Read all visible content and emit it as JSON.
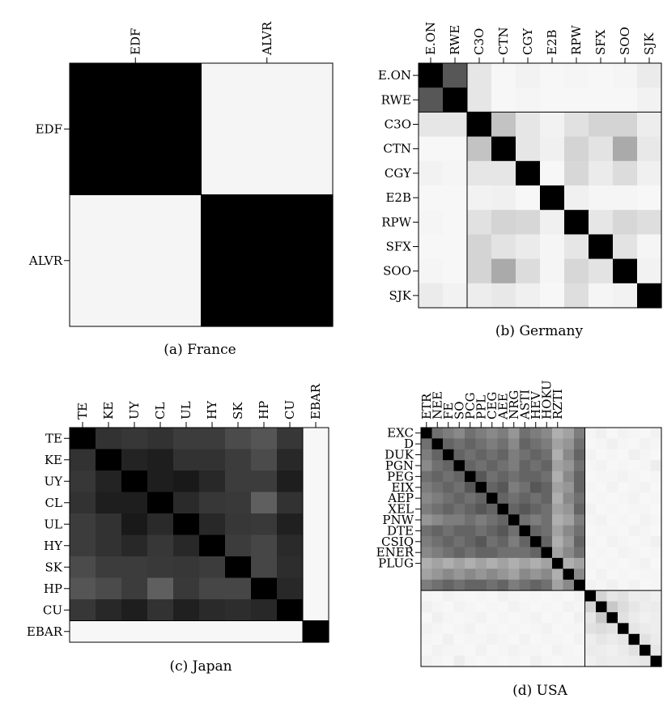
{
  "figure": {
    "captions": [
      "(a)  France",
      "(b)  Germany",
      "(c)  Japan",
      "(d)  USA"
    ]
  },
  "chart_data": [
    {
      "type": "heatmap",
      "caption": "(a)  France",
      "row_labels": [
        "EDF",
        "ALVR"
      ],
      "col_labels": [
        "EDF",
        "ALVR"
      ],
      "grid": false,
      "group_sizes": [
        1,
        1
      ],
      "colormap": "gray_r",
      "values": [
        [
          1.0,
          0.02
        ],
        [
          0.02,
          1.0
        ]
      ]
    },
    {
      "type": "heatmap",
      "caption": "(b)  Germany",
      "row_labels": [
        "E.ON",
        "RWE",
        "C3O",
        "CTN",
        "CGY",
        "E2B",
        "RPW",
        "SFX",
        "SOO",
        "SJK"
      ],
      "col_labels": [
        "E.ON",
        "RWE",
        "C3O",
        "CTN",
        "CGY",
        "E2B",
        "RPW",
        "SFX",
        "SOO",
        "SJK"
      ],
      "grid": false,
      "group_sizes": [
        2,
        8
      ],
      "colormap": "gray_r",
      "values": [
        [
          1.0,
          0.65,
          0.08,
          0.01,
          0.03,
          0.01,
          0.02,
          0.01,
          0.02,
          0.06
        ],
        [
          0.65,
          1.0,
          0.08,
          0.01,
          0.02,
          0.01,
          0.01,
          0.01,
          0.01,
          0.03
        ],
        [
          0.08,
          0.08,
          1.0,
          0.22,
          0.08,
          0.03,
          0.1,
          0.15,
          0.15,
          0.05
        ],
        [
          0.01,
          0.01,
          0.22,
          1.0,
          0.08,
          0.04,
          0.15,
          0.09,
          0.32,
          0.07
        ],
        [
          0.03,
          0.02,
          0.08,
          0.08,
          1.0,
          0.01,
          0.14,
          0.06,
          0.12,
          0.04
        ],
        [
          0.01,
          0.01,
          0.03,
          0.04,
          0.01,
          1.0,
          0.04,
          0.02,
          0.02,
          0.01
        ],
        [
          0.02,
          0.01,
          0.1,
          0.15,
          0.14,
          0.04,
          1.0,
          0.08,
          0.14,
          0.11
        ],
        [
          0.01,
          0.01,
          0.15,
          0.09,
          0.06,
          0.02,
          0.08,
          1.0,
          0.09,
          0.02
        ],
        [
          0.02,
          0.01,
          0.15,
          0.32,
          0.12,
          0.02,
          0.14,
          0.09,
          1.0,
          0.03
        ],
        [
          0.06,
          0.03,
          0.05,
          0.07,
          0.04,
          0.01,
          0.11,
          0.02,
          0.03,
          1.0
        ]
      ]
    },
    {
      "type": "heatmap",
      "caption": "(c)  Japan",
      "row_labels": [
        "TE",
        "KE",
        "UY",
        "CL",
        "UL",
        "HY",
        "SK",
        "HP",
        "CU",
        "EBAR"
      ],
      "col_labels": [
        "TE",
        "KE",
        "UY",
        "CL",
        "UL",
        "HY",
        "SK",
        "HP",
        "CU",
        "EBAR"
      ],
      "grid": false,
      "group_sizes": [
        9,
        1
      ],
      "colormap": "gray_r",
      "values": [
        [
          1.0,
          0.8,
          0.78,
          0.8,
          0.76,
          0.76,
          0.7,
          0.66,
          0.78,
          0.01
        ],
        [
          0.8,
          1.0,
          0.86,
          0.88,
          0.8,
          0.8,
          0.76,
          0.7,
          0.84,
          0.01
        ],
        [
          0.78,
          0.86,
          1.0,
          0.88,
          0.9,
          0.84,
          0.76,
          0.76,
          0.88,
          0.01
        ],
        [
          0.8,
          0.88,
          0.88,
          1.0,
          0.83,
          0.78,
          0.77,
          0.62,
          0.8,
          0.01
        ],
        [
          0.76,
          0.8,
          0.9,
          0.83,
          1.0,
          0.84,
          0.78,
          0.77,
          0.87,
          0.01
        ],
        [
          0.76,
          0.8,
          0.84,
          0.78,
          0.84,
          1.0,
          0.76,
          0.72,
          0.83,
          0.01
        ],
        [
          0.7,
          0.76,
          0.76,
          0.77,
          0.78,
          0.76,
          1.0,
          0.72,
          0.82,
          0.01
        ],
        [
          0.66,
          0.7,
          0.76,
          0.62,
          0.77,
          0.72,
          0.72,
          1.0,
          0.84,
          0.01
        ],
        [
          0.78,
          0.84,
          0.88,
          0.8,
          0.87,
          0.83,
          0.82,
          0.84,
          1.0,
          0.01
        ],
        [
          0.01,
          0.01,
          0.01,
          0.01,
          0.01,
          0.01,
          0.01,
          0.01,
          0.01,
          1.0
        ]
      ]
    },
    {
      "type": "heatmap",
      "caption": "(d)  USA",
      "row_labels": [
        "EXC",
        "D",
        "DUK",
        "PGN",
        "PEG",
        "EIX",
        "AEP",
        "XEL",
        "PNW",
        "DTE",
        "CSIQ",
        "ENER",
        "PLUG"
      ],
      "col_labels": [
        "ETR",
        "NEE",
        "FE",
        "SO",
        "PCG",
        "PPL",
        "CEG",
        "AEE",
        "NRG",
        "ASTI",
        "HEV",
        "HOKU",
        "RZTI"
      ],
      "grid": false,
      "group_sizes": [
        15,
        7
      ],
      "n_cells": 22,
      "colormap": "gray_r",
      "values": [
        [
          1.0,
          0.55,
          0.5,
          0.45,
          0.55,
          0.5,
          0.45,
          0.5,
          0.4,
          0.55,
          0.5,
          0.45,
          0.3,
          0.35,
          0.5,
          0.02,
          0.04,
          0.01,
          0.03,
          0.02,
          0.01,
          0.03
        ],
        [
          0.55,
          1.0,
          0.6,
          0.55,
          0.6,
          0.55,
          0.5,
          0.55,
          0.45,
          0.6,
          0.55,
          0.5,
          0.35,
          0.4,
          0.55,
          0.01,
          0.02,
          0.04,
          0.02,
          0.01,
          0.03,
          0.02
        ],
        [
          0.5,
          0.6,
          1.0,
          0.6,
          0.55,
          0.6,
          0.55,
          0.6,
          0.5,
          0.55,
          0.6,
          0.55,
          0.3,
          0.45,
          0.6,
          0.03,
          0.01,
          0.02,
          0.01,
          0.04,
          0.02,
          0.01
        ],
        [
          0.45,
          0.55,
          0.6,
          1.0,
          0.6,
          0.55,
          0.6,
          0.55,
          0.5,
          0.6,
          0.55,
          0.6,
          0.35,
          0.4,
          0.55,
          0.02,
          0.03,
          0.01,
          0.02,
          0.01,
          0.02,
          0.05
        ],
        [
          0.55,
          0.6,
          0.55,
          0.6,
          1.0,
          0.65,
          0.55,
          0.6,
          0.55,
          0.6,
          0.6,
          0.55,
          0.3,
          0.45,
          0.6,
          0.01,
          0.02,
          0.02,
          0.03,
          0.02,
          0.01,
          0.02
        ],
        [
          0.5,
          0.55,
          0.6,
          0.55,
          0.65,
          1.0,
          0.6,
          0.65,
          0.5,
          0.55,
          0.65,
          0.6,
          0.35,
          0.4,
          0.6,
          0.02,
          0.01,
          0.03,
          0.01,
          0.02,
          0.03,
          0.01
        ],
        [
          0.45,
          0.5,
          0.55,
          0.6,
          0.55,
          0.6,
          1.0,
          0.6,
          0.55,
          0.6,
          0.55,
          0.6,
          0.3,
          0.45,
          0.55,
          0.01,
          0.02,
          0.01,
          0.02,
          0.03,
          0.01,
          0.02
        ],
        [
          0.5,
          0.55,
          0.6,
          0.55,
          0.6,
          0.65,
          0.6,
          1.0,
          0.6,
          0.65,
          0.6,
          0.55,
          0.35,
          0.4,
          0.6,
          0.03,
          0.01,
          0.02,
          0.01,
          0.02,
          0.02,
          0.01
        ],
        [
          0.4,
          0.45,
          0.5,
          0.5,
          0.55,
          0.5,
          0.55,
          0.6,
          1.0,
          0.55,
          0.5,
          0.55,
          0.3,
          0.35,
          0.5,
          0.02,
          0.03,
          0.01,
          0.02,
          0.01,
          0.03,
          0.02
        ],
        [
          0.55,
          0.6,
          0.55,
          0.6,
          0.6,
          0.55,
          0.6,
          0.65,
          0.55,
          1.0,
          0.6,
          0.55,
          0.35,
          0.45,
          0.55,
          0.01,
          0.02,
          0.02,
          0.01,
          0.03,
          0.02,
          0.01
        ],
        [
          0.5,
          0.55,
          0.6,
          0.55,
          0.6,
          0.65,
          0.55,
          0.6,
          0.5,
          0.6,
          1.0,
          0.6,
          0.3,
          0.4,
          0.6,
          0.02,
          0.01,
          0.03,
          0.02,
          0.01,
          0.02,
          0.04
        ],
        [
          0.45,
          0.5,
          0.55,
          0.6,
          0.55,
          0.6,
          0.6,
          0.55,
          0.55,
          0.55,
          0.6,
          1.0,
          0.35,
          0.45,
          0.55,
          0.01,
          0.02,
          0.01,
          0.03,
          0.02,
          0.01,
          0.02
        ],
        [
          0.3,
          0.35,
          0.3,
          0.35,
          0.3,
          0.35,
          0.3,
          0.35,
          0.3,
          0.35,
          0.3,
          0.35,
          1.0,
          0.3,
          0.35,
          0.02,
          0.01,
          0.02,
          0.01,
          0.02,
          0.03,
          0.01
        ],
        [
          0.35,
          0.4,
          0.45,
          0.4,
          0.45,
          0.4,
          0.45,
          0.4,
          0.35,
          0.45,
          0.4,
          0.45,
          0.3,
          1.0,
          0.45,
          0.01,
          0.03,
          0.01,
          0.02,
          0.01,
          0.02,
          0.02
        ],
        [
          0.5,
          0.55,
          0.6,
          0.55,
          0.6,
          0.6,
          0.55,
          0.6,
          0.5,
          0.55,
          0.6,
          0.55,
          0.35,
          0.45,
          1.0,
          0.03,
          0.02,
          0.04,
          0.02,
          0.03,
          0.01,
          0.02
        ],
        [
          0.02,
          0.01,
          0.03,
          0.02,
          0.01,
          0.02,
          0.01,
          0.03,
          0.02,
          0.01,
          0.02,
          0.01,
          0.02,
          0.01,
          0.03,
          1.0,
          0.15,
          0.08,
          0.1,
          0.05,
          0.06,
          0.04
        ],
        [
          0.04,
          0.02,
          0.01,
          0.03,
          0.02,
          0.01,
          0.02,
          0.01,
          0.03,
          0.02,
          0.01,
          0.02,
          0.01,
          0.03,
          0.02,
          0.15,
          1.0,
          0.2,
          0.12,
          0.08,
          0.05,
          0.06
        ],
        [
          0.01,
          0.04,
          0.02,
          0.01,
          0.02,
          0.03,
          0.01,
          0.02,
          0.01,
          0.02,
          0.03,
          0.01,
          0.02,
          0.01,
          0.04,
          0.08,
          0.2,
          1.0,
          0.1,
          0.06,
          0.04,
          0.05
        ],
        [
          0.03,
          0.02,
          0.01,
          0.02,
          0.03,
          0.01,
          0.02,
          0.01,
          0.02,
          0.01,
          0.02,
          0.03,
          0.01,
          0.02,
          0.02,
          0.1,
          0.12,
          0.1,
          1.0,
          0.08,
          0.06,
          0.05
        ],
        [
          0.02,
          0.01,
          0.04,
          0.01,
          0.02,
          0.02,
          0.03,
          0.02,
          0.01,
          0.03,
          0.01,
          0.02,
          0.02,
          0.01,
          0.03,
          0.05,
          0.08,
          0.06,
          0.08,
          1.0,
          0.1,
          0.06
        ],
        [
          0.01,
          0.03,
          0.02,
          0.02,
          0.01,
          0.03,
          0.01,
          0.02,
          0.03,
          0.02,
          0.02,
          0.01,
          0.03,
          0.02,
          0.01,
          0.06,
          0.05,
          0.04,
          0.06,
          0.1,
          1.0,
          0.08
        ],
        [
          0.03,
          0.02,
          0.01,
          0.05,
          0.02,
          0.01,
          0.02,
          0.01,
          0.02,
          0.01,
          0.04,
          0.02,
          0.01,
          0.02,
          0.02,
          0.04,
          0.06,
          0.05,
          0.05,
          0.06,
          0.08,
          1.0
        ]
      ]
    }
  ]
}
